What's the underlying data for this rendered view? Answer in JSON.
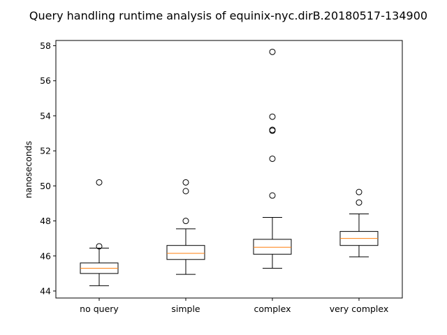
{
  "chart_data": {
    "type": "boxplot",
    "title": "Query handling runtime analysis of equinix-nyc.dirB.20180517-134900",
    "xlabel": "",
    "ylabel": "nanoseconds",
    "categories": [
      "no query",
      "simple",
      "complex",
      "very complex"
    ],
    "ylim": [
      43.6,
      58.3
    ],
    "yticks": [
      44,
      46,
      48,
      50,
      52,
      54,
      56,
      58
    ],
    "grid": false,
    "boxes": [
      {
        "category": "no query",
        "whisker_low": 44.3,
        "q1": 45.0,
        "median": 45.3,
        "q3": 45.6,
        "whisker_high": 46.45,
        "outliers": [
          46.55,
          50.2
        ]
      },
      {
        "category": "simple",
        "whisker_low": 44.95,
        "q1": 45.8,
        "median": 46.15,
        "q3": 46.6,
        "whisker_high": 47.55,
        "outliers": [
          48.0,
          49.7,
          50.2
        ]
      },
      {
        "category": "complex",
        "whisker_low": 45.3,
        "q1": 46.1,
        "median": 46.5,
        "q3": 46.95,
        "whisker_high": 48.2,
        "outliers": [
          49.45,
          51.55,
          53.15,
          53.2,
          53.95,
          57.65
        ]
      },
      {
        "category": "very complex",
        "whisker_low": 45.95,
        "q1": 46.6,
        "median": 47.0,
        "q3": 47.4,
        "whisker_high": 48.4,
        "outliers": [
          49.05,
          49.65
        ]
      }
    ],
    "colors": {
      "box": "#000000",
      "median": "#ff7f0e",
      "outlier": "#000000"
    }
  }
}
